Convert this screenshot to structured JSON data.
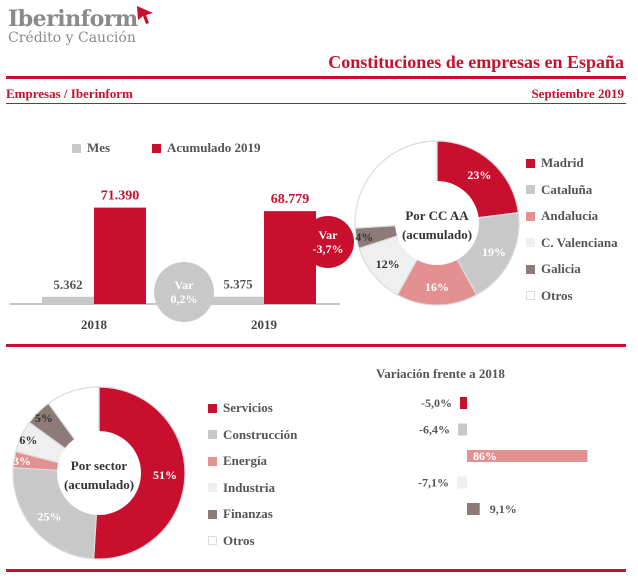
{
  "header": {
    "logo_name": "Iberinform",
    "logo_tagline": "Crédito y Caución",
    "title": "Constituciones de empresas en España",
    "subtitle_left": "Empresas / Iberinform",
    "subtitle_right": "Septiembre 2019"
  },
  "colors": {
    "red": "#c8102e",
    "grey": "#c8c8c8",
    "pink": "#e39090",
    "light": "#efefef",
    "brown": "#8c7b78",
    "white": "#ffffff"
  },
  "chart_data": [
    {
      "type": "bar",
      "categories": [
        "2018",
        "2019"
      ],
      "series": [
        {
          "name": "Mes",
          "color": "#c8c8c8",
          "values": [
            5362,
            5375
          ],
          "labels": [
            "5.362",
            "5.375"
          ]
        },
        {
          "name": "Acumulado 2019",
          "color": "#c8102e",
          "values": [
            71390,
            68779
          ],
          "labels": [
            "71.390",
            "68.779"
          ]
        }
      ],
      "ylim": [
        0,
        80000
      ],
      "annotations": {
        "var_mes": {
          "line1": "Var",
          "line2": "0,2%"
        },
        "var_acum": {
          "line1": "Var",
          "line2": "-3,7%"
        }
      }
    },
    {
      "type": "pie",
      "center_label": [
        "Por CC AA",
        "(acumulado)"
      ],
      "slices": [
        {
          "name": "Madrid",
          "value": 23,
          "label": "23%",
          "color": "#c8102e"
        },
        {
          "name": "Cataluña",
          "value": 19,
          "label": "19%",
          "color": "#c8c8c8"
        },
        {
          "name": "Andalucía",
          "value": 16,
          "label": "16%",
          "color": "#e39090"
        },
        {
          "name": "C. Valenciana",
          "value": 12,
          "label": "12%",
          "color": "#efefef"
        },
        {
          "name": "Galicia",
          "value": 4,
          "label": "4%",
          "color": "#8c7b78"
        },
        {
          "name": "Otros",
          "value": 26,
          "label": "",
          "color": "#ffffff"
        }
      ]
    },
    {
      "type": "pie",
      "center_label": [
        "Por sector",
        "(acumulado)"
      ],
      "slices": [
        {
          "name": "Servicios",
          "value": 51,
          "label": "51%",
          "color": "#c8102e"
        },
        {
          "name": "Construcción",
          "value": 25,
          "label": "25%",
          "color": "#c8c8c8"
        },
        {
          "name": "Energía",
          "value": 3,
          "label": "3%",
          "color": "#e39090"
        },
        {
          "name": "Industria",
          "value": 6,
          "label": "6%",
          "color": "#efefef"
        },
        {
          "name": "Finanzas",
          "value": 5,
          "label": "5%",
          "color": "#8c7b78"
        },
        {
          "name": "Otros",
          "value": 10,
          "label": "",
          "color": "#ffffff"
        }
      ]
    },
    {
      "type": "bar",
      "title": "Variación frente a 2018",
      "categories": [
        "Servicios",
        "Construcción",
        "Energía",
        "Industria",
        "Finanzas"
      ],
      "values": [
        -5.0,
        -6.4,
        86,
        -7.1,
        9.1
      ],
      "labels": [
        "-5,0%",
        "-6,4%",
        "86%",
        "-7,1%",
        "9,1%"
      ],
      "colors": [
        "#c8102e",
        "#c8c8c8",
        "#e39090",
        "#efefef",
        "#8c7b78"
      ]
    }
  ]
}
